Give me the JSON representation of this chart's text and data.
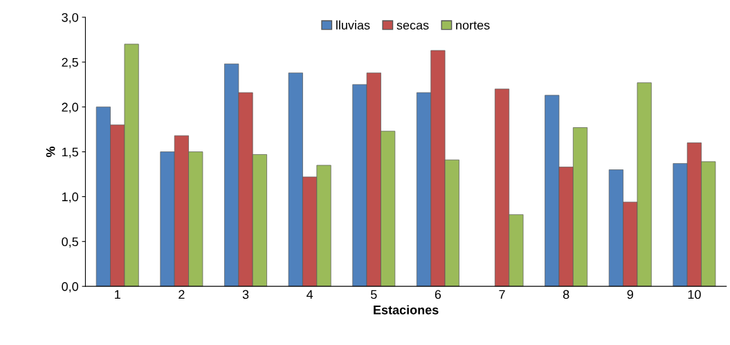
{
  "chart_data": {
    "type": "bar",
    "xlabel": "Estaciones",
    "ylabel": "%",
    "categories": [
      "1",
      "2",
      "3",
      "4",
      "5",
      "6",
      "7",
      "8",
      "9",
      "10"
    ],
    "series": [
      {
        "name": "lluvias",
        "color": "#4f81bd",
        "values": [
          2.0,
          1.5,
          2.48,
          2.38,
          2.25,
          2.16,
          null,
          2.13,
          1.3,
          1.37
        ]
      },
      {
        "name": "secas",
        "color": "#c0504d",
        "values": [
          1.8,
          1.68,
          2.16,
          1.22,
          2.38,
          2.63,
          2.2,
          1.33,
          0.94,
          1.6
        ]
      },
      {
        "name": "nortes",
        "color": "#9bbb59",
        "values": [
          2.7,
          1.5,
          1.47,
          1.35,
          1.73,
          1.41,
          0.8,
          1.77,
          2.27,
          1.39
        ]
      }
    ],
    "ylim": [
      0,
      3
    ],
    "yticks": [
      {
        "value": 0,
        "label": "0,0"
      },
      {
        "value": 0.5,
        "label": "0,5"
      },
      {
        "value": 1,
        "label": "1,0"
      },
      {
        "value": 1.5,
        "label": "1,5"
      },
      {
        "value": 2,
        "label": "2,0"
      },
      {
        "value": 2.5,
        "label": "2,5"
      },
      {
        "value": 3,
        "label": "3,0"
      }
    ],
    "grid": false,
    "legend": "top"
  }
}
